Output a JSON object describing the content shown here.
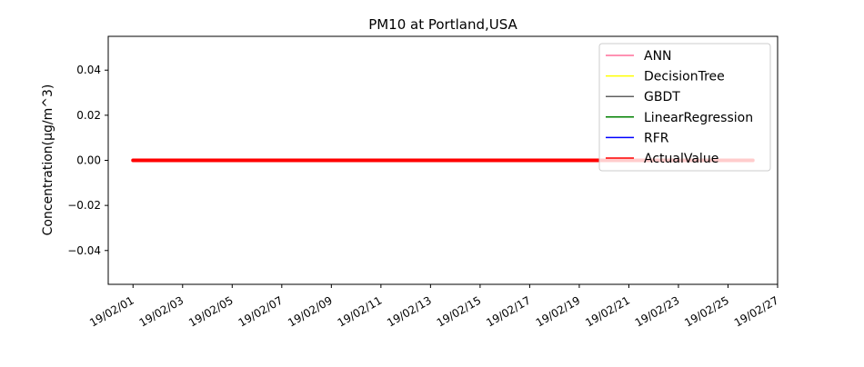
{
  "chart_data": {
    "type": "line",
    "title": "PM10 at Portland,USA",
    "xlabel": "",
    "ylabel": "Concentration(μg/m^3)",
    "x_ticks": [
      "19/02/01",
      "19/02/03",
      "19/02/05",
      "19/02/07",
      "19/02/09",
      "19/02/11",
      "19/02/13",
      "19/02/15",
      "19/02/17",
      "19/02/19",
      "19/02/21",
      "19/02/23",
      "19/02/25",
      "19/02/27"
    ],
    "y_ticks": [
      "0.04",
      "0.02",
      "0.00",
      "−0.02",
      "−0.04"
    ],
    "y_tick_values": [
      0.04,
      0.02,
      0.0,
      -0.02,
      -0.04
    ],
    "xlim": [
      "2019-01-31",
      "2019-02-27"
    ],
    "ylim": [
      -0.055,
      0.055
    ],
    "x_start": "2019-02-01",
    "x_end": "2019-02-26",
    "grid": false,
    "legend_position": "top-right",
    "series": [
      {
        "name": "ANN",
        "color": "#ff6f9a",
        "value": 0.0
      },
      {
        "name": "DecisionTree",
        "color": "#ffff00",
        "value": 0.0
      },
      {
        "name": "GBDT",
        "color": "#606060",
        "value": 0.0
      },
      {
        "name": "LinearRegression",
        "color": "#008000",
        "value": 0.0
      },
      {
        "name": "RFR",
        "color": "#0000ff",
        "value": 0.0
      },
      {
        "name": "ActualValue",
        "color": "#ff0000",
        "value": 0.0
      }
    ]
  }
}
